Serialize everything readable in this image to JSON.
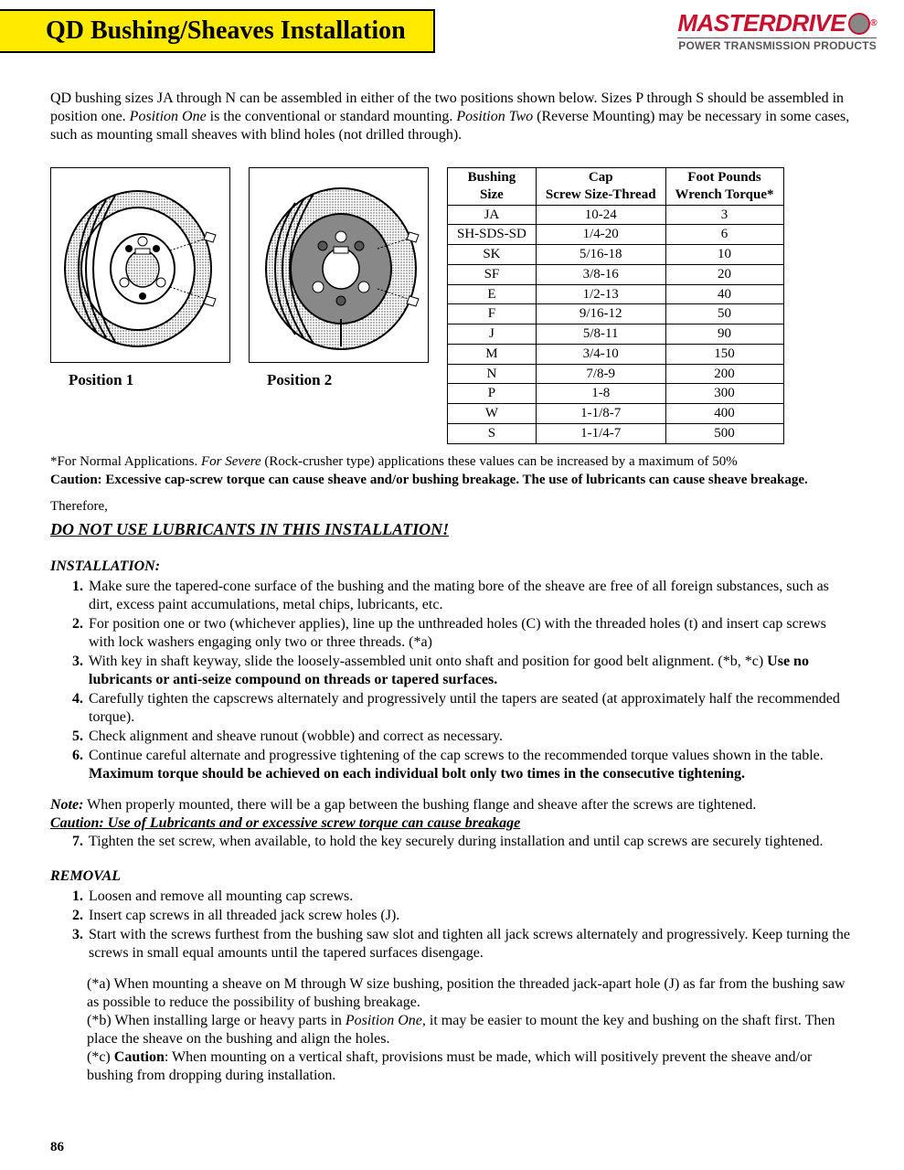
{
  "header": {
    "title": "QD Bushing/Sheaves Installation",
    "logo_main": "MASTERDRIVE",
    "logo_sub": "POWER TRANSMISSION PRODUCTS"
  },
  "intro": {
    "text_before_pos1": "QD bushing sizes JA through N can be assembled in either of the two positions shown below.  Sizes P through  S should be assembled in position one.  ",
    "pos1_label": "Position One",
    "text_mid": " is the conventional or standard mounting.  ",
    "pos2_label": "Position Two",
    "text_after": " (Reverse Mounting)  may be necessary in some cases, such as mounting small sheaves with blind holes (not drilled through)."
  },
  "figures": {
    "pos1": "Position 1",
    "pos2": "Position 2"
  },
  "table": {
    "columns": [
      "Bushing Size",
      "Cap Screw Size-Thread",
      "Foot Pounds Wrench Torque*"
    ],
    "rows": [
      [
        "JA",
        "10-24",
        "3"
      ],
      [
        "SH-SDS-SD",
        "1/4-20",
        "6"
      ],
      [
        "SK",
        "5/16-18",
        "10"
      ],
      [
        "SF",
        "3/8-16",
        "20"
      ],
      [
        "E",
        "1/2-13",
        "40"
      ],
      [
        "F",
        "9/16-12",
        "50"
      ],
      [
        "J",
        "5/8-11",
        "90"
      ],
      [
        "M",
        "3/4-10",
        "150"
      ],
      [
        "N",
        "7/8-9",
        "200"
      ],
      [
        "P",
        "1-8",
        "300"
      ],
      [
        "W",
        "1-1/8-7",
        "400"
      ],
      [
        "S",
        "1-1/4-7",
        "500"
      ]
    ]
  },
  "footnote": {
    "prefix": "*For Normal Applications. ",
    "severe": "For Severe",
    "suffix": " (Rock-crusher type) applications these values can be increased by a maximum of 50%"
  },
  "caution_line": "Caution: Excessive cap-screw torque can cause sheave and/or bushing breakage. The use of lubricants can cause sheave breakage.",
  "therefore": "Therefore,",
  "do_not": "DO NOT USE LUBRICANTS IN THIS INSTALLATION!",
  "installation": {
    "head": "INSTALLATION:",
    "steps": [
      {
        "a": "Make sure the tapered-cone surface of the bushing and the mating bore of the sheave are free of all foreign substances, such as dirt, excess paint accumulations, metal chips, lubricants, etc."
      },
      {
        "a": "For position one or two (whichever applies), line up the unthreaded holes (C) with the threaded holes (t) and insert cap screws with lock washers engaging only two or three threads.   (*a)"
      },
      {
        "a": "With key in shaft keyway, slide the loosely-assembled unit onto shaft and position for good belt alignment. (*b, *c)  ",
        "b": "Use no lubricants or anti-seize compound on threads or tapered surfaces."
      },
      {
        "a": "Carefully tighten the capscrews alternately and progressively until the tapers are seated (at approximately half the recommended torque)."
      },
      {
        "a": "Check alignment and sheave runout (wobble) and correct as necessary."
      },
      {
        "a": "Continue careful alternate and progressive tightening of the cap screws to the recommended torque values shown in the table.  ",
        "b": "Maximum torque should be achieved on each individual bolt only two times in the consecutive tightening."
      }
    ]
  },
  "note": {
    "label": "Note:",
    "text": "  When properly mounted, there will be a gap between the bushing flange and sheave after the screws are tightened."
  },
  "caution2": "Caution:  Use of Lubricants and or excessive screw torque can cause breakage",
  "step7": "Tighten the set screw, when available, to hold the key securely during installation and until cap screws are securely tightened.",
  "removal": {
    "head": "REMOVAL",
    "steps": [
      "Loosen and remove all mounting cap screws.",
      "Insert cap screws in all threaded jack screw holes (J).",
      "Start with the screws furthest from the bushing saw slot and tighten all jack screws alternately and progressively.  Keep turning the screws in small equal amounts until the tapered surfaces disengage."
    ]
  },
  "addenda": {
    "a": "(*a)  When mounting a sheave on M through W size bushing, position the threaded jack-apart hole (J) as far from the bushing saw as possible to reduce the possibility of bushing breakage.",
    "b_pre": "(*b)  When installing large or heavy parts in ",
    "b_em": "Position One",
    "b_post": ", it may be easier to mount the key and bushing on the shaft first.  Then place the sheave on the bushing and align the holes.",
    "c_pre": "(*c)  ",
    "c_bold": "Caution",
    "c_post": ": When mounting on a vertical shaft, provisions must be made, which will positively prevent the sheave and/or bushing from dropping during installation."
  },
  "page_num": "86"
}
